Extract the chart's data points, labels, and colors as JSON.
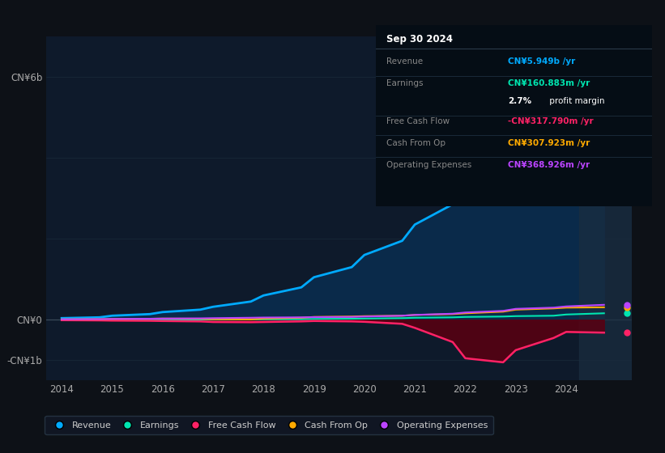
{
  "bg_color": "#0d1117",
  "plot_bg_color": "#0e1a2b",
  "years": [
    2014,
    2014.75,
    2015,
    2015.75,
    2016,
    2016.75,
    2017,
    2017.75,
    2018,
    2018.75,
    2019,
    2019.75,
    2020,
    2020.75,
    2021,
    2021.75,
    2022,
    2022.75,
    2023,
    2023.75,
    2024,
    2024.75
  ],
  "revenue": [
    0.04,
    0.06,
    0.1,
    0.14,
    0.19,
    0.25,
    0.32,
    0.45,
    0.6,
    0.8,
    1.05,
    1.3,
    1.6,
    1.95,
    2.35,
    2.85,
    3.4,
    4.0,
    4.55,
    5.1,
    5.65,
    5.949
  ],
  "earnings": [
    0.002,
    0.003,
    0.004,
    0.005,
    0.006,
    0.007,
    0.005,
    0.006,
    0.01,
    0.015,
    0.02,
    0.025,
    0.03,
    0.04,
    0.05,
    0.06,
    0.07,
    0.08,
    0.09,
    0.1,
    0.13,
    0.16
  ],
  "free_cash_flow": [
    -0.01,
    -0.015,
    -0.02,
    -0.025,
    -0.03,
    -0.04,
    -0.055,
    -0.06,
    -0.055,
    -0.04,
    -0.03,
    -0.04,
    -0.05,
    -0.1,
    -0.2,
    -0.55,
    -0.95,
    -1.05,
    -0.75,
    -0.45,
    -0.3,
    -0.318
  ],
  "cash_from_op": [
    0.01,
    0.015,
    0.02,
    0.025,
    0.03,
    0.025,
    0.015,
    0.01,
    0.03,
    0.05,
    0.07,
    0.08,
    0.09,
    0.1,
    0.12,
    0.14,
    0.16,
    0.2,
    0.25,
    0.28,
    0.3,
    0.308
  ],
  "operating_expenses": [
    0.01,
    0.015,
    0.02,
    0.025,
    0.03,
    0.035,
    0.04,
    0.05,
    0.055,
    0.06,
    0.065,
    0.07,
    0.08,
    0.1,
    0.12,
    0.15,
    0.18,
    0.22,
    0.27,
    0.3,
    0.33,
    0.369
  ],
  "revenue_color": "#00aaff",
  "earnings_color": "#00e5b0",
  "fcf_color": "#ff2266",
  "cashop_color": "#ffaa00",
  "opex_color": "#bb44ff",
  "revenue_fill": "#0a2a4a",
  "fcf_fill": "#5a0011",
  "ylim_top": 7.0,
  "ylim_bottom": -1.5,
  "grid_lines": [
    -1.0,
    0.0,
    2.0,
    4.0,
    6.0
  ],
  "ytick_positions": [
    -1.0,
    0.0,
    6.0
  ],
  "ytick_labels": [
    "-CN¥1b",
    "CN¥0",
    "CN¥6b"
  ],
  "xtick_years": [
    2014,
    2015,
    2016,
    2017,
    2018,
    2019,
    2020,
    2021,
    2022,
    2023,
    2024
  ],
  "legend_items": [
    {
      "label": "Revenue",
      "color": "#00aaff"
    },
    {
      "label": "Earnings",
      "color": "#00e5b0"
    },
    {
      "label": "Free Cash Flow",
      "color": "#ff2266"
    },
    {
      "label": "Cash From Op",
      "color": "#ffaa00"
    },
    {
      "label": "Operating Expenses",
      "color": "#bb44ff"
    }
  ],
  "tooltip": {
    "title": "Sep 30 2024",
    "rows": [
      {
        "label": "Revenue",
        "value": "CN¥5.949b /yr",
        "value_color": "#00aaff",
        "has_divider": true
      },
      {
        "label": "Earnings",
        "value": "CN¥160.883m /yr",
        "value_color": "#00e5b0",
        "has_divider": false
      },
      {
        "label": "",
        "value": "2.7% profit margin",
        "value_color": "#ffffff",
        "has_divider": true,
        "bold_prefix": "2.7%"
      },
      {
        "label": "Free Cash Flow",
        "value": "-CN¥317.790m /yr",
        "value_color": "#ff2266",
        "has_divider": true
      },
      {
        "label": "Cash From Op",
        "value": "CN¥307.923m /yr",
        "value_color": "#ffaa00",
        "has_divider": true
      },
      {
        "label": "Operating Expenses",
        "value": "CN¥368.926m /yr",
        "value_color": "#bb44ff",
        "has_divider": false
      }
    ]
  }
}
